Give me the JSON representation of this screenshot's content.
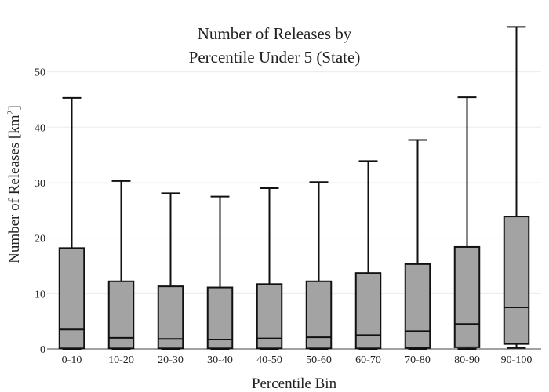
{
  "chart_data": {
    "type": "box",
    "title_lines": [
      "Number of Releases by",
      "Percentile Under 5 (State)"
    ],
    "xlabel": "Percentile Bin",
    "ylabel_main": "Number of Releases  [km",
    "ylabel_sup": "2",
    "ylabel_end": "]",
    "ylim": [
      0,
      59
    ],
    "yticks": [
      0,
      10,
      20,
      30,
      40,
      50
    ],
    "grid": true,
    "colors": {
      "box_fill": "#a3a3a3",
      "line": "#111111",
      "grid": "#ececec"
    },
    "categories": [
      "0-10",
      "10-20",
      "20-30",
      "30-40",
      "40-50",
      "50-60",
      "60-70",
      "70-80",
      "80-90",
      "90-100"
    ],
    "boxes": [
      {
        "min": 0,
        "q1": 0.1,
        "median": 3.5,
        "q3": 18.2,
        "max": 45.3
      },
      {
        "min": 0,
        "q1": 0.1,
        "median": 2.0,
        "q3": 12.2,
        "max": 30.3
      },
      {
        "min": 0,
        "q1": 0.1,
        "median": 1.8,
        "q3": 11.3,
        "max": 28.1
      },
      {
        "min": 0,
        "q1": 0.1,
        "median": 1.7,
        "q3": 11.1,
        "max": 27.5
      },
      {
        "min": 0,
        "q1": 0.1,
        "median": 1.9,
        "q3": 11.7,
        "max": 29.0
      },
      {
        "min": 0,
        "q1": 0.1,
        "median": 2.1,
        "q3": 12.2,
        "max": 30.1
      },
      {
        "min": 0,
        "q1": 0.1,
        "median": 2.5,
        "q3": 13.7,
        "max": 33.9
      },
      {
        "min": 0,
        "q1": 0.2,
        "median": 3.2,
        "q3": 15.3,
        "max": 37.7
      },
      {
        "min": 0,
        "q1": 0.3,
        "median": 4.5,
        "q3": 18.4,
        "max": 45.4
      },
      {
        "min": 0.2,
        "q1": 0.9,
        "median": 7.5,
        "q3": 23.9,
        "max": 58.1
      }
    ]
  }
}
